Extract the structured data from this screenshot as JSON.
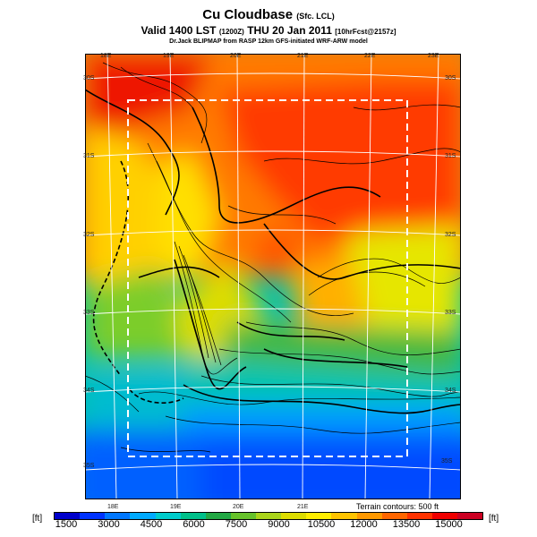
{
  "title": {
    "main": "Cu Cloudbase",
    "main_suffix": "(Sfc. LCL)",
    "valid": "Valid 1400 LST",
    "valid_code": "(1200Z)",
    "valid_date": "THU 20 Jan 2011",
    "valid_suffix": "[10hrFcst@2157z]",
    "credit": "Dr.Jack BLIPMAP from RASP 12km GFS-initiated WRF-ARW model"
  },
  "map": {
    "lon_labels_top": [
      "18E",
      "19E",
      "20E",
      "21E",
      "22E",
      "23E"
    ],
    "lon_labels_bottom": [
      "18E",
      "19E",
      "20E",
      "21E"
    ],
    "lat_labels_left": [
      "30S",
      "31S",
      "32S",
      "33S",
      "34S",
      "35S"
    ],
    "lat_labels_right": [
      "30S",
      "31S",
      "32S",
      "33S",
      "34S",
      "35S"
    ],
    "terrain_note": "Terrain contours: 500 ft"
  },
  "colorbar": {
    "unit_left": "[ft]",
    "unit_right": "[ft]",
    "ticks": [
      "1500",
      "3000",
      "4500",
      "6000",
      "7500",
      "9000",
      "10500",
      "12000",
      "13500",
      "15000"
    ],
    "colors": [
      "#0000cc",
      "#0033ff",
      "#0077ff",
      "#00aaff",
      "#00cccc",
      "#00c08a",
      "#22a844",
      "#66c22a",
      "#aad41a",
      "#dddd00",
      "#ffee00",
      "#ffc400",
      "#ff9900",
      "#ff6600",
      "#ff3300",
      "#ee0000",
      "#cc0022"
    ]
  }
}
